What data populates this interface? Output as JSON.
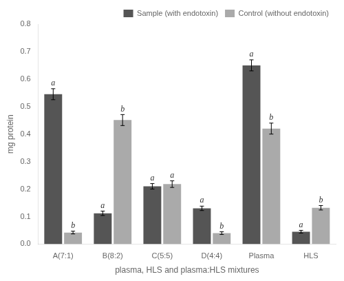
{
  "chart_data": {
    "type": "bar",
    "xlabel": "plasma, HLS and plasma:HLS mixtures",
    "ylabel": "mg protein",
    "categories": [
      "A(7:1)",
      "B(8:2)",
      "C(5:5)",
      "D(4:4)",
      "Plasma",
      "HLS"
    ],
    "series": [
      {
        "name": "Sample (with endotoxin)",
        "color": "#555555",
        "values": [
          0.545,
          0.112,
          0.21,
          0.13,
          0.65,
          0.045
        ],
        "errors": [
          0.02,
          0.008,
          0.01,
          0.008,
          0.02,
          0.005
        ],
        "letters": [
          "a",
          "a",
          "a",
          "a",
          "a",
          "a"
        ]
      },
      {
        "name": "Control (without endotoxin)",
        "color": "#aaaaaa",
        "values": [
          0.042,
          0.451,
          0.218,
          0.04,
          0.42,
          0.132
        ],
        "errors": [
          0.005,
          0.02,
          0.012,
          0.005,
          0.02,
          0.008
        ],
        "letters": [
          "b",
          "b",
          "a",
          "b",
          "b",
          "b"
        ]
      }
    ],
    "ylim": [
      0,
      0.8
    ],
    "yticks": [
      {
        "value": 0,
        "label": "0.0"
      },
      0.1,
      0.2,
      0.3,
      0.4,
      0.5,
      0.6,
      0.7,
      0.8
    ],
    "grid": false,
    "legend": "upper right"
  }
}
